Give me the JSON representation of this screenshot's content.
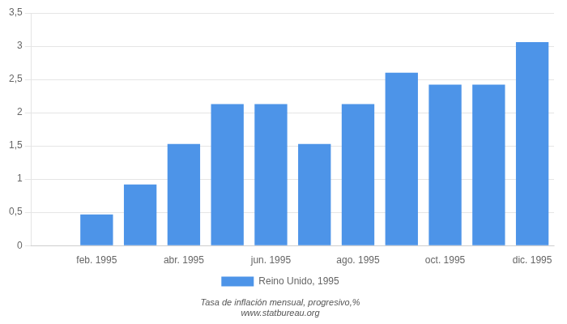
{
  "chart_data": {
    "type": "bar",
    "categories": [
      null,
      "feb. 1995",
      null,
      "abr. 1995",
      null,
      "jun. 1995",
      null,
      "ago. 1995",
      null,
      "oct. 1995",
      null,
      "dic. 1995"
    ],
    "series": [
      {
        "name": "Reino Unido, 1995",
        "color": "#4d94e8",
        "values": [
          null,
          0.47,
          0.92,
          1.53,
          2.13,
          2.13,
          1.53,
          2.13,
          2.6,
          2.42,
          2.42,
          3.06
        ]
      }
    ],
    "ylim": [
      0,
      3.5
    ],
    "yticks": [
      0,
      {
        "value": 0.5,
        "label": "0,5"
      },
      1,
      {
        "value": 1.5,
        "label": "1,5"
      },
      2,
      {
        "value": 2.5,
        "label": "2,5"
      },
      3,
      {
        "value": 3.5,
        "label": "3,5"
      }
    ],
    "grid": true,
    "legend": "bottom",
    "annotations": [
      "Tasa de inflación mensual, progresivo,%",
      "www.statbureau.org"
    ]
  }
}
